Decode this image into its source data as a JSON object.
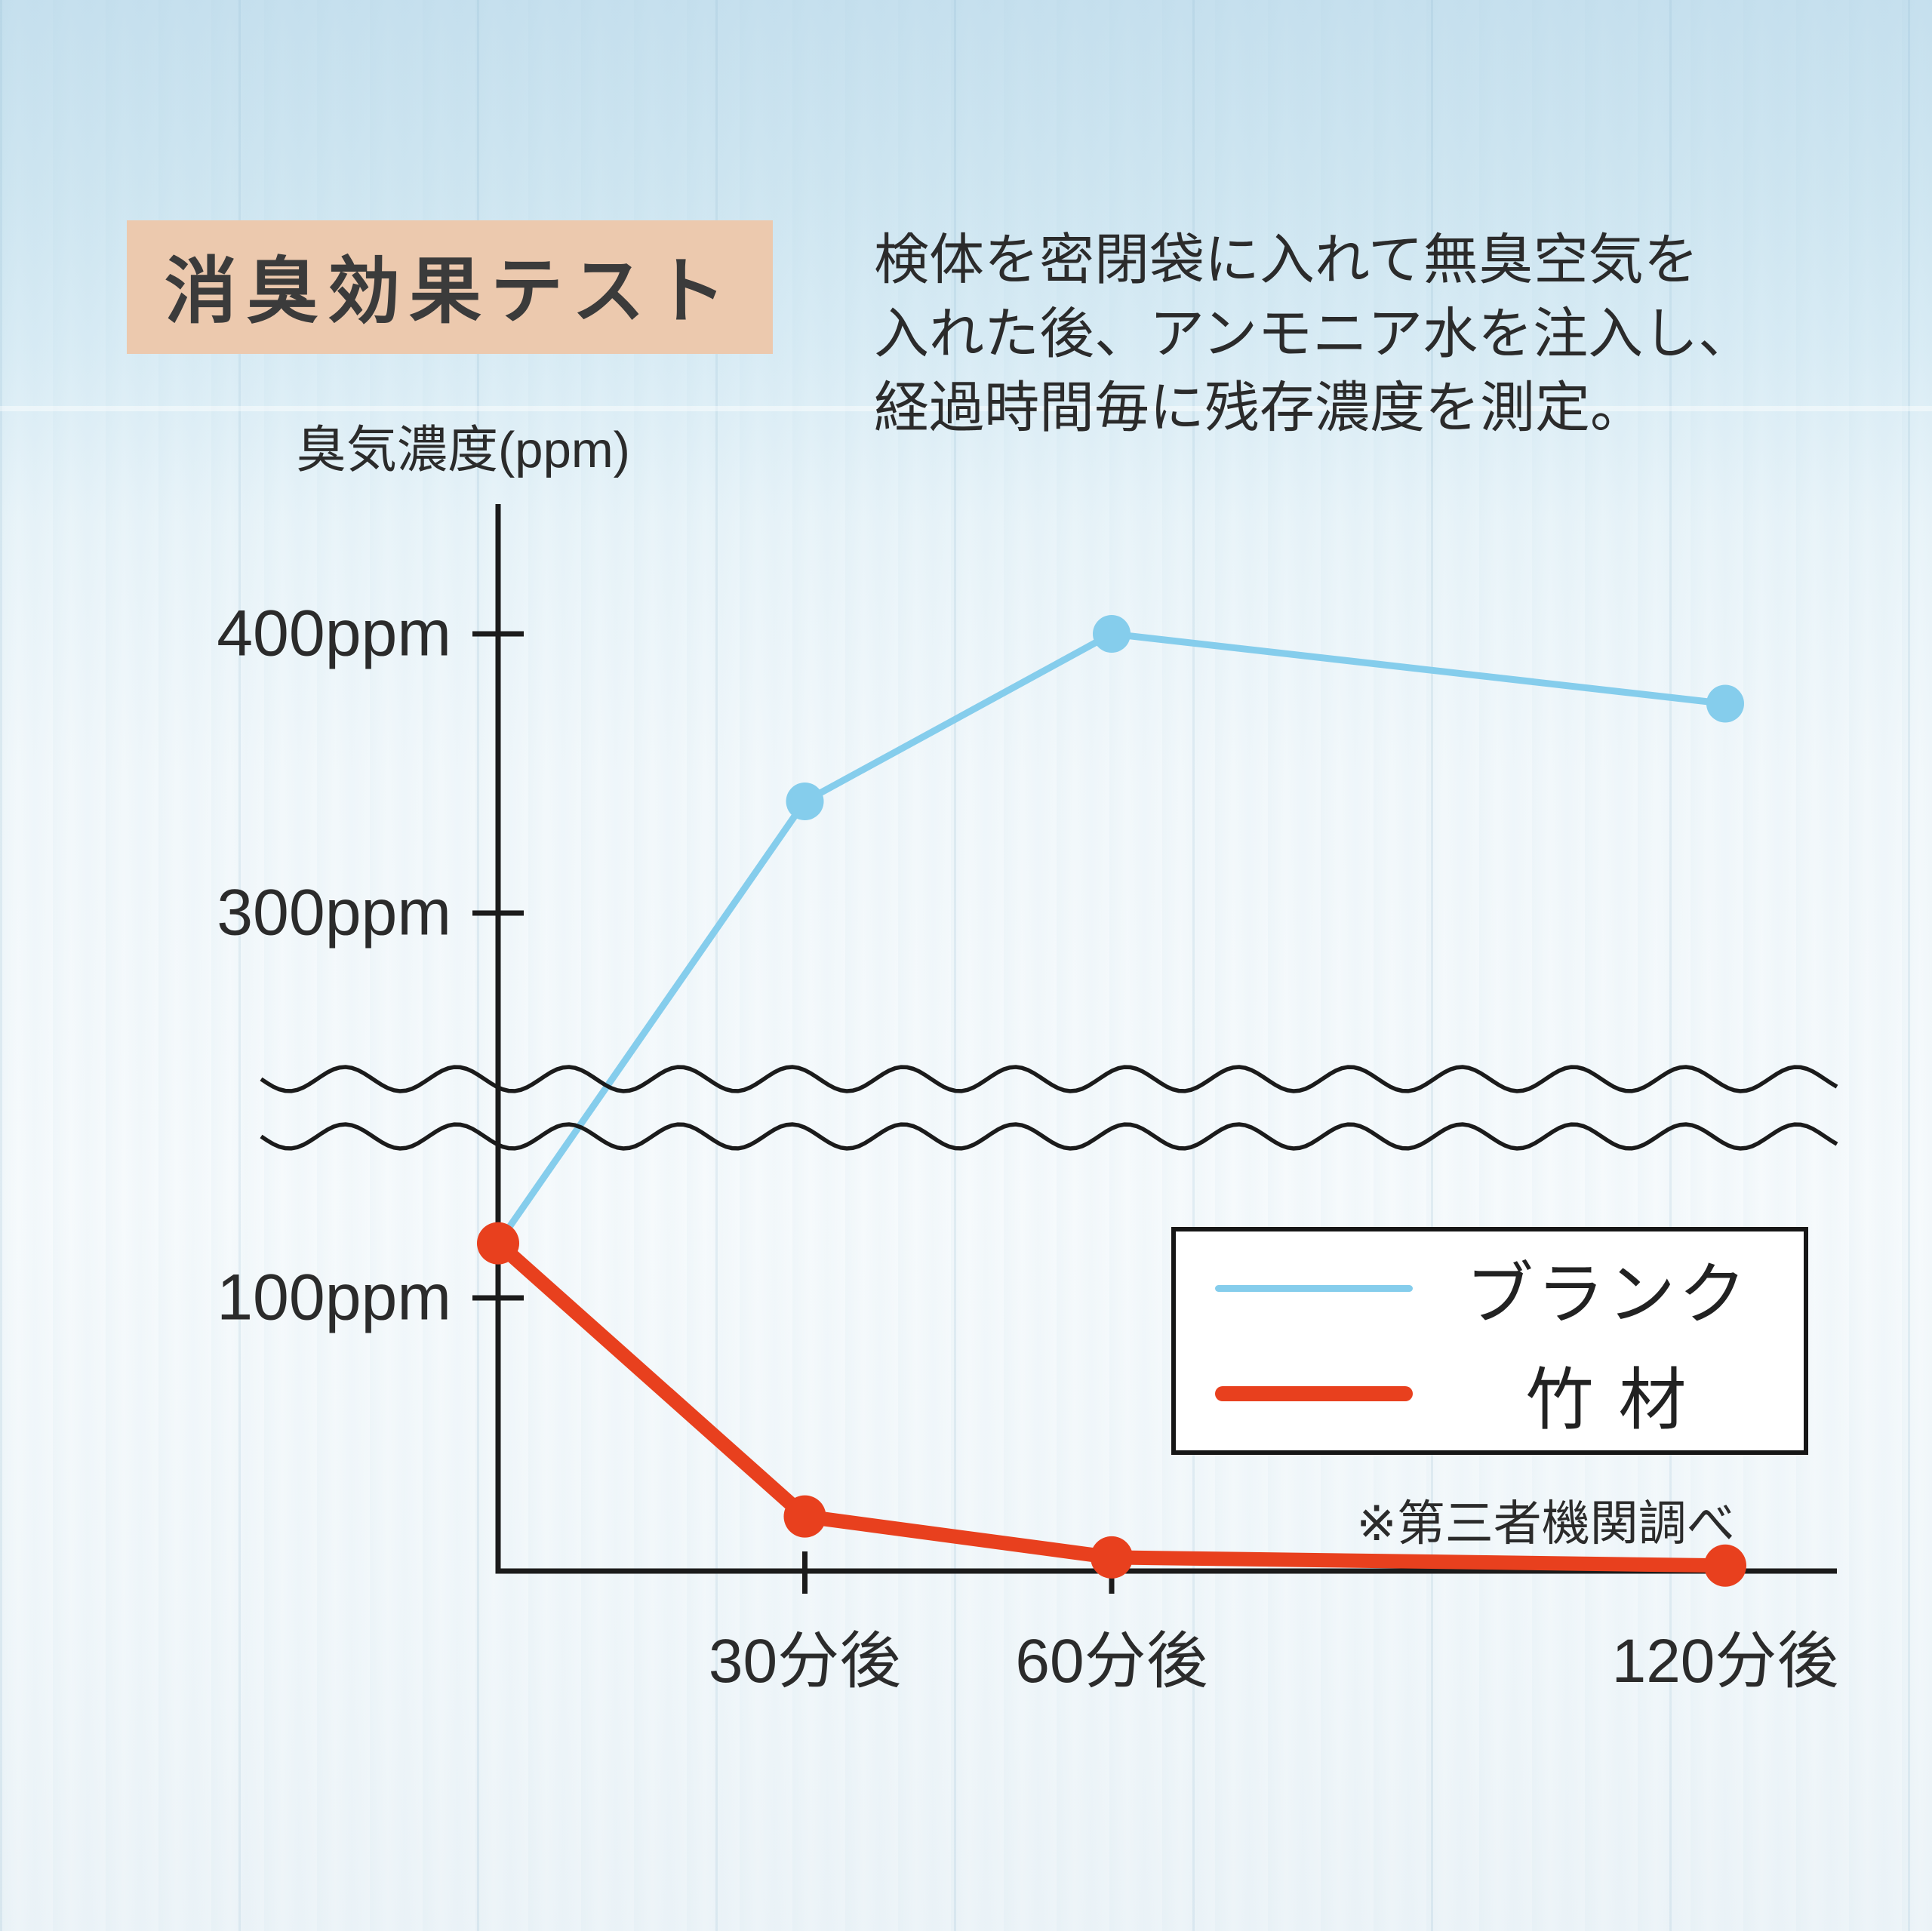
{
  "header": {
    "title": "消臭効果テスト",
    "description_lines": [
      "検体を密閉袋に入れて無臭空気を",
      "入れた後、アンモニア水を注入し、",
      "経過時間毎に残存濃度を測定。"
    ]
  },
  "legend": {
    "labels": [
      "ブランク",
      "竹 材"
    ],
    "note": "※第三者機関調べ"
  },
  "chart_data": {
    "type": "line",
    "title": "消臭効果テスト",
    "ylabel": "臭気濃度(ppm)",
    "xlabel": "",
    "x_minutes": [
      0,
      30,
      60,
      120
    ],
    "x_tick_labels": [
      "30分後",
      "60分後",
      "120分後"
    ],
    "y_tick_labels": [
      "400ppm",
      "300ppm",
      "100ppm"
    ],
    "y_tick_values": [
      400,
      300,
      100
    ],
    "ylim": [
      0,
      430
    ],
    "y_axis_break": {
      "between": [
        150,
        250
      ]
    },
    "grid": false,
    "legend_position": "lower right",
    "series": [
      {
        "name": "ブランク",
        "color": "#85cdec",
        "values": [
          120,
          340,
          400,
          375
        ]
      },
      {
        "name": "竹材",
        "color": "#e8401e",
        "values": [
          120,
          20,
          5,
          2
        ]
      }
    ],
    "note": "※第三者機関調べ"
  }
}
